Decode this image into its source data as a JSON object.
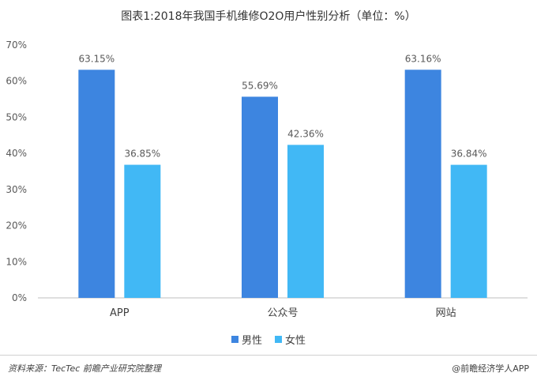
{
  "title": "图表1:2018年我国手机维修O2O用户性别分析（单位：%）",
  "chart_data": {
    "type": "bar",
    "categories": [
      "APP",
      "公众号",
      "网站"
    ],
    "series": [
      {
        "name": "男性",
        "values": [
          63.15,
          55.69,
          63.16
        ],
        "color": "#3d85e0"
      },
      {
        "name": "女性",
        "values": [
          36.85,
          42.36,
          36.84
        ],
        "color": "#41b8f5"
      }
    ],
    "data_labels": [
      [
        "63.15%",
        "55.69%",
        "63.16%"
      ],
      [
        "36.85%",
        "42.36%",
        "36.84%"
      ]
    ],
    "ylim": [
      0,
      70
    ],
    "yticks": [
      0,
      10,
      20,
      30,
      40,
      50,
      60,
      70
    ],
    "ytick_labels": [
      "0%",
      "10%",
      "20%",
      "30%",
      "40%",
      "50%",
      "60%",
      "70%"
    ],
    "grid": false,
    "legend_position": "bottom"
  },
  "footer": {
    "source": "资料来源：TecTec 前瞻产业研究院整理",
    "brand": "@前瞻经济学人APP"
  }
}
